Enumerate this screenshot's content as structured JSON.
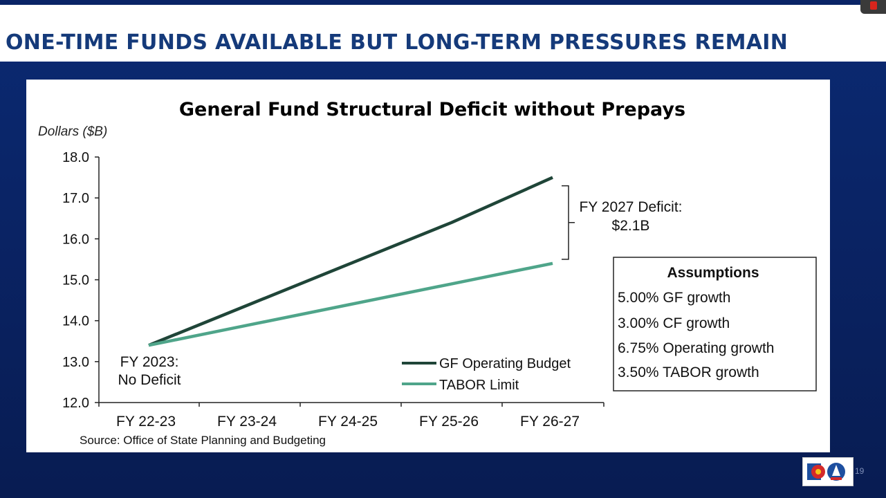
{
  "slide": {
    "title": "ONE-TIME FUNDS AVAILABLE BUT LONG-TERM PRESSURES REMAIN",
    "page_number": "19"
  },
  "colors": {
    "background": "#0a2466",
    "title_text": "#153a7a",
    "gf_line": "#1f4538",
    "tabor_line": "#4fa58a"
  },
  "chart_data": {
    "type": "line",
    "title": "General Fund Structural Deficit without Prepays",
    "ylabel": "Dollars ($B)",
    "xlabel": "",
    "categories": [
      "FY 22-23",
      "FY 23-24",
      "FY 24-25",
      "FY 25-26",
      "FY 26-27"
    ],
    "ylim": [
      12.0,
      18.0
    ],
    "yticks": [
      "12.0",
      "13.0",
      "14.0",
      "15.0",
      "16.0",
      "17.0",
      "18.0"
    ],
    "series": [
      {
        "name": "GF Operating Budget",
        "values": [
          13.4,
          14.4,
          15.4,
          16.4,
          17.5
        ],
        "color": "#1f4538"
      },
      {
        "name": "TABOR Limit",
        "values": [
          13.4,
          13.9,
          14.4,
          14.9,
          15.4
        ],
        "color": "#4fa58a"
      }
    ],
    "legend_position": "bottom-right",
    "grid": false,
    "annotations": {
      "start_line1": "FY 2023:",
      "start_line2": "No Deficit",
      "deficit_line1": "FY 2027 Deficit:",
      "deficit_line2": "$2.1B"
    },
    "assumptions": {
      "title": "Assumptions",
      "items": [
        "5.00% GF growth",
        "3.00% CF growth",
        "6.75% Operating growth",
        "3.50% TABOR growth"
      ]
    },
    "source": "Source: Office of State Planning and Budgeting"
  }
}
